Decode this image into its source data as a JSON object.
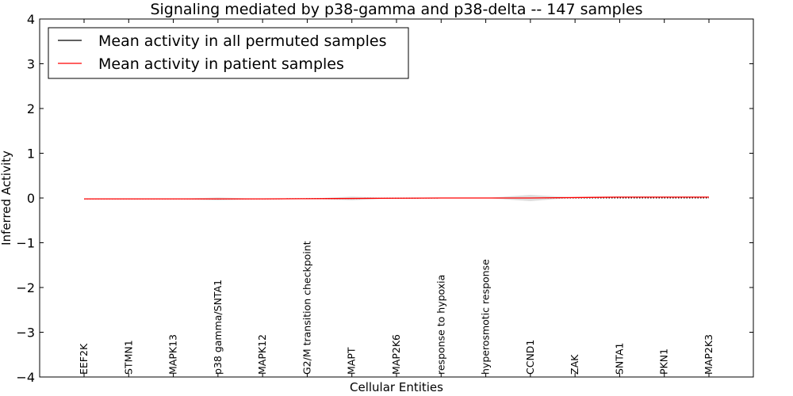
{
  "chart_data": {
    "type": "line",
    "title": "Signaling mediated by p38-gamma and p38-delta -- 147 samples",
    "xlabel": "Cellular Entities",
    "ylabel": "Inferred Activity",
    "ylim": [
      -4,
      4
    ],
    "yticks": [
      4,
      3,
      2,
      1,
      0,
      -1,
      -2,
      -3,
      -4
    ],
    "ytick_labels": [
      "4",
      "3",
      "2",
      "1",
      "0",
      "−1",
      "−2",
      "−3",
      "−4"
    ],
    "categories": [
      "EEF2K",
      "STMN1",
      "MAPK13",
      "p38 gamma/SNTA1",
      "MAPK12",
      "G2/M transition checkpoint",
      "MAPT",
      "MAP2K6",
      "response to hypoxia",
      "hyperosmotic response",
      "CCND1",
      "ZAK",
      "SNTA1",
      "PKN1",
      "MAP2K3"
    ],
    "legend": {
      "position": "top-left",
      "entries": [
        "Mean activity in all permuted samples",
        "Mean activity in patient samples"
      ]
    },
    "series": [
      {
        "name": "Mean activity in all permuted samples",
        "color": "#000000",
        "style": "dotted",
        "values": [
          -0.02,
          -0.02,
          -0.02,
          -0.02,
          -0.02,
          -0.015,
          -0.01,
          -0.005,
          0.0,
          0.0,
          0.0,
          0.0,
          0.0,
          0.0,
          0.0
        ]
      },
      {
        "name": "Mean activity in patient samples",
        "color": "#ff0000",
        "style": "solid",
        "values": [
          -0.02,
          -0.02,
          -0.02,
          -0.02,
          -0.02,
          -0.015,
          -0.01,
          -0.005,
          0.0,
          0.0,
          0.0,
          0.01,
          0.02,
          0.02,
          0.02
        ]
      }
    ],
    "band": {
      "color": "#c8c8c8",
      "half_width": [
        0.0,
        0.0,
        0.0,
        0.03,
        0.0,
        0.0,
        0.04,
        0.0,
        0.0,
        0.0,
        0.07,
        0.0,
        0.0,
        0.0,
        0.0
      ]
    }
  }
}
